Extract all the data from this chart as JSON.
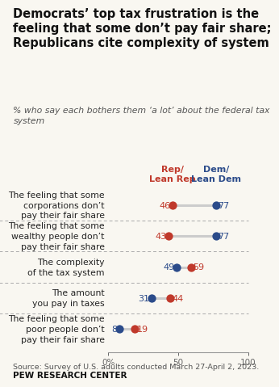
{
  "title": "Democrats’ top tax frustration is the\nfeeling that some don’t pay fair share;\nRepublicans cite complexity of system",
  "subtitle": "% who say each bothers them ‘a lot’ about the federal tax\nsystem",
  "source": "Source: Survey of U.S. adults conducted March 27-April 2, 2023.",
  "credit": "PEW RESEARCH CENTER",
  "categories": [
    "The feeling that some\ncorporations don’t\npay their fair share",
    "The feeling that some\nwealthy people don’t\npay their fair share",
    "The complexity\nof the tax system",
    "The amount\nyou pay in taxes",
    "The feeling that some\npoor people don’t\npay their fair share"
  ],
  "rep_values": [
    46,
    43,
    59,
    44,
    19
  ],
  "dem_values": [
    77,
    77,
    49,
    31,
    8
  ],
  "rep_color": "#c0392b",
  "dem_color": "#2b4b8a",
  "connector_color": "#cccccc",
  "rep_label": "Rep/\nLean Rep",
  "dem_label": "Dem/\nLean Dem",
  "xlim": [
    0,
    100
  ],
  "xticks": [
    0,
    50,
    100
  ],
  "xticklabels": [
    "0%",
    "50",
    "100"
  ],
  "background_color": "#f9f7f1",
  "dotsize": 55,
  "title_fontsize": 10.5,
  "subtitle_fontsize": 7.8,
  "cat_fontsize": 7.8,
  "val_fontsize": 8.0,
  "header_fontsize": 8.0,
  "source_fontsize": 6.8,
  "credit_fontsize": 7.5
}
